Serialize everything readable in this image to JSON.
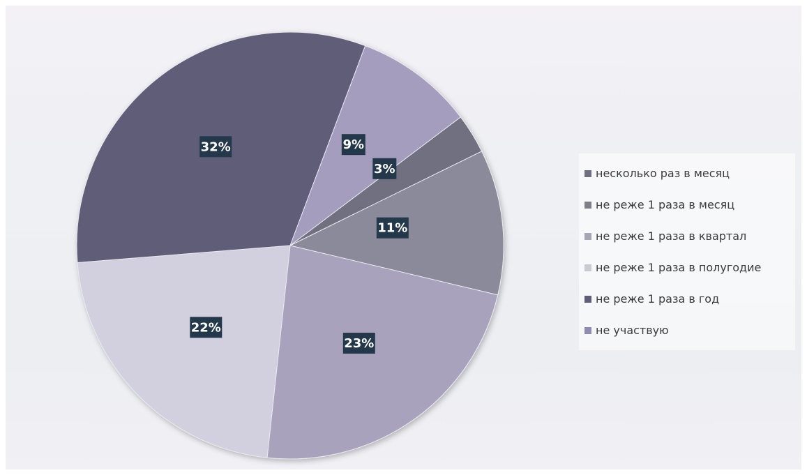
{
  "chart_data": {
    "type": "pie",
    "title": "",
    "slices": [
      {
        "label": "несколько раз в месяц",
        "value": 3,
        "display": "3%",
        "color": "#6f6f80"
      },
      {
        "label": "не реже 1 раза в месяц",
        "value": 11,
        "display": "11%",
        "color": "#8a8a9a"
      },
      {
        "label": "не реже 1 раза в квартал",
        "value": 23,
        "display": "23%",
        "color": "#a9a2bd"
      },
      {
        "label": "не реже 1 раза в полугодие",
        "value": 22,
        "display": "22%",
        "color": "#d2d0df"
      },
      {
        "label": "не реже 1 раза в год",
        "value": 32,
        "display": "32%",
        "color": "#5f5d78"
      },
      {
        "label": "не участвую",
        "value": 9,
        "display": "9%",
        "color": "#a49dbd"
      }
    ],
    "legend_position": "right",
    "label_box_color": "#23384a"
  },
  "legend": {
    "items": [
      {
        "label": "несколько раз в месяц",
        "color": "#6f6f80"
      },
      {
        "label": "не реже 1 раза в месяц",
        "color": "#7d7f88"
      },
      {
        "label": "не реже 1 раза в квартал",
        "color": "#a7a5b4"
      },
      {
        "label": "не реже 1 раза в полугодие",
        "color": "#c9cbd2"
      },
      {
        "label": "не реже 1 раза в год",
        "color": "#5f5d78"
      },
      {
        "label": "не участвую",
        "color": "#8f8ab0"
      }
    ]
  }
}
